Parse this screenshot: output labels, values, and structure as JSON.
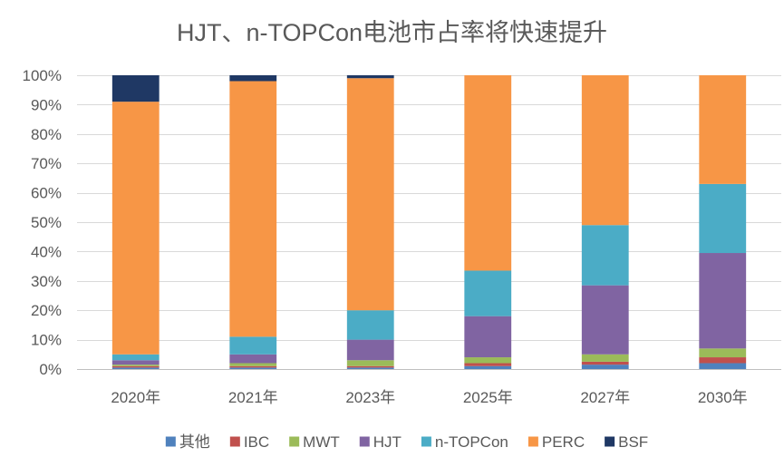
{
  "chart_data": {
    "type": "bar",
    "stacked": true,
    "title": "HJT、n-TOPCon电池市占率将快速提升",
    "categories": [
      "2020年",
      "2021年",
      "2023年",
      "2025年",
      "2027年",
      "2030年"
    ],
    "ylim": [
      0,
      100
    ],
    "ytick_values": [
      0,
      10,
      20,
      30,
      40,
      50,
      60,
      70,
      80,
      90,
      100
    ],
    "ytick_labels": [
      "0%",
      "10%",
      "20%",
      "30%",
      "40%",
      "50%",
      "60%",
      "70%",
      "80%",
      "90%",
      "100%"
    ],
    "grid": true,
    "legend": "bottom",
    "series": [
      {
        "name": "其他",
        "color": "#4F81BD",
        "values": [
          0.5,
          0.5,
          0.5,
          1,
          1.5,
          2
        ]
      },
      {
        "name": "IBC",
        "color": "#C0504D",
        "values": [
          0.5,
          0.5,
          0.5,
          1,
          1,
          2
        ]
      },
      {
        "name": "MWT",
        "color": "#9BBB59",
        "values": [
          0.5,
          1,
          2,
          2,
          2.5,
          3
        ]
      },
      {
        "name": "HJT",
        "color": "#8064A2",
        "values": [
          1.5,
          3,
          7,
          14,
          23.5,
          32.5
        ]
      },
      {
        "name": "n-TOPCon",
        "color": "#4BACC6",
        "values": [
          2,
          6,
          10,
          15.5,
          20.5,
          23.5
        ]
      },
      {
        "name": "PERC",
        "color": "#F79646",
        "values": [
          86,
          87,
          79,
          66.5,
          51,
          37
        ]
      },
      {
        "name": "BSF",
        "color": "#1F3864",
        "values": [
          9,
          2,
          1,
          0,
          0,
          0
        ]
      }
    ]
  }
}
